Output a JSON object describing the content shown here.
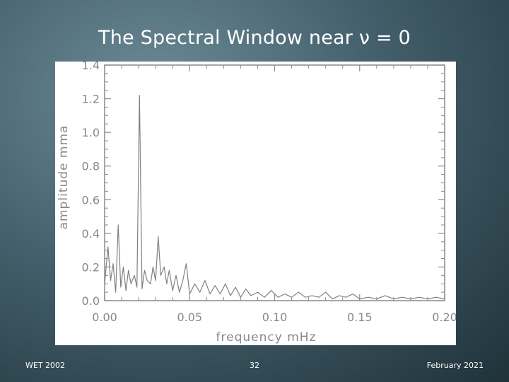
{
  "slide": {
    "title": "The Spectral Window near ν = 0",
    "footer_left": "WET 2002",
    "footer_center": "32",
    "footer_right": "February 2021"
  },
  "chart_data": {
    "type": "line",
    "title": "",
    "xlabel": "frequency  mHz",
    "ylabel": "amplitude  mma",
    "xlim": [
      0.0,
      0.2
    ],
    "ylim": [
      0.0,
      1.4
    ],
    "xticks": [
      "0.00",
      "0.05",
      "0.10",
      "0.15",
      "0.20"
    ],
    "yticks": [
      "0.0",
      "0.2",
      "0.4",
      "0.6",
      "0.8",
      "1.0",
      "1.2",
      "1.4"
    ],
    "grid": false,
    "series": [
      {
        "color": "#808080",
        "x": [
          0.0,
          0.002,
          0.0035,
          0.005,
          0.0065,
          0.008,
          0.0095,
          0.011,
          0.0125,
          0.014,
          0.0155,
          0.0175,
          0.019,
          0.0205,
          0.022,
          0.0235,
          0.025,
          0.027,
          0.0285,
          0.03,
          0.0315,
          0.033,
          0.035,
          0.0365,
          0.038,
          0.04,
          0.042,
          0.044,
          0.046,
          0.048,
          0.05,
          0.053,
          0.056,
          0.059,
          0.062,
          0.065,
          0.068,
          0.071,
          0.074,
          0.077,
          0.08,
          0.083,
          0.086,
          0.09,
          0.094,
          0.098,
          0.102,
          0.106,
          0.11,
          0.114,
          0.118,
          0.122,
          0.126,
          0.13,
          0.134,
          0.138,
          0.142,
          0.146,
          0.15,
          0.155,
          0.16,
          0.165,
          0.17,
          0.175,
          0.18,
          0.185,
          0.19,
          0.195,
          0.2
        ],
        "y": [
          0.1,
          0.32,
          0.12,
          0.22,
          0.05,
          0.45,
          0.08,
          0.2,
          0.06,
          0.18,
          0.1,
          0.15,
          0.08,
          1.22,
          0.07,
          0.18,
          0.12,
          0.1,
          0.2,
          0.12,
          0.38,
          0.15,
          0.2,
          0.1,
          0.18,
          0.06,
          0.15,
          0.05,
          0.12,
          0.22,
          0.04,
          0.1,
          0.05,
          0.12,
          0.04,
          0.09,
          0.04,
          0.1,
          0.03,
          0.08,
          0.02,
          0.07,
          0.03,
          0.05,
          0.02,
          0.06,
          0.02,
          0.04,
          0.02,
          0.05,
          0.02,
          0.03,
          0.02,
          0.05,
          0.01,
          0.03,
          0.02,
          0.04,
          0.01,
          0.02,
          0.01,
          0.03,
          0.01,
          0.02,
          0.01,
          0.02,
          0.01,
          0.02,
          0.01
        ]
      }
    ]
  }
}
